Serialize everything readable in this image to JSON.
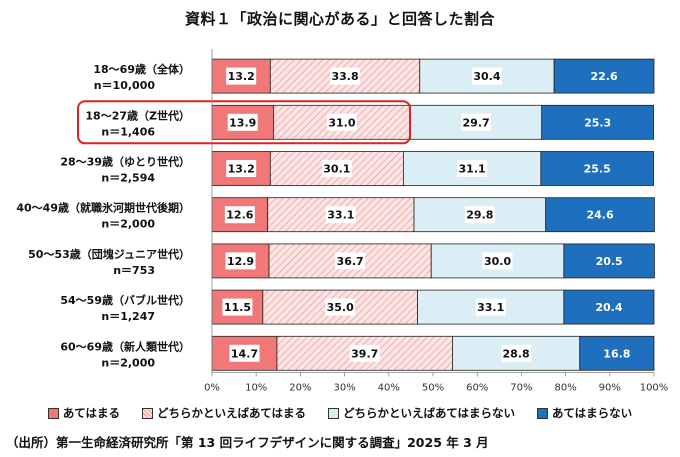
{
  "title": "資料１「政治に関心がある」と回答した割合",
  "source": "（出所）第一生命経済研究所「第 13 回ライフデザインに関する調査」2025 年 3 月",
  "colors": {
    "c1": "#f07878",
    "c2": "#fbe4e4",
    "c2_hatch": "#f2a0a0",
    "c3": "#dbeef6",
    "c4": "#1f6fbf",
    "highlight": "#e02020"
  },
  "chart_data": {
    "type": "bar",
    "orientation": "horizontal",
    "stacked": true,
    "xlim": [
      0,
      100
    ],
    "xticks": [
      "0%",
      "10%",
      "20%",
      "30%",
      "40%",
      "50%",
      "60%",
      "70%",
      "80%",
      "90%",
      "100%"
    ],
    "categories": [
      {
        "label": "18～69歳（全体）",
        "n": "n＝10,000"
      },
      {
        "label": "18～27歳（Z世代）",
        "n": "n＝1,406",
        "highlighted": true
      },
      {
        "label": "28～39歳（ゆとり世代）",
        "n": "n＝2,594"
      },
      {
        "label": "40～49歳（就職氷河期世代後期）",
        "n": "n＝2,000"
      },
      {
        "label": "50～53歳（団塊ジュニア世代）",
        "n": "n＝753"
      },
      {
        "label": "54～59歳（バブル世代）",
        "n": "n＝1,247"
      },
      {
        "label": "60～69歳（新人類世代）",
        "n": "n＝2,000"
      }
    ],
    "series": [
      {
        "name": "あてはまる",
        "values": [
          13.2,
          13.9,
          13.2,
          12.6,
          12.9,
          11.5,
          14.7
        ]
      },
      {
        "name": "どちらかといえばあてはまる",
        "values": [
          33.8,
          31.0,
          30.1,
          33.1,
          36.7,
          35.0,
          39.7
        ]
      },
      {
        "name": "どちらかといえばあてはまらない",
        "values": [
          30.4,
          29.7,
          31.1,
          29.8,
          30.0,
          33.1,
          28.8
        ]
      },
      {
        "name": "あてはまらない",
        "values": [
          22.6,
          25.3,
          25.5,
          24.6,
          20.5,
          20.4,
          16.8
        ]
      }
    ]
  }
}
